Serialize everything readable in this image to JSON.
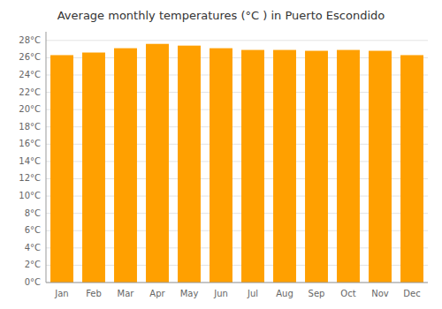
{
  "chart_data": {
    "type": "bar",
    "title": "Average monthly temperatures (°C ) in Puerto Escondido",
    "categories": [
      "Jan",
      "Feb",
      "Mar",
      "Apr",
      "May",
      "Jun",
      "Jul",
      "Aug",
      "Sep",
      "Oct",
      "Nov",
      "Dec"
    ],
    "values": [
      26.3,
      26.6,
      27.1,
      27.6,
      27.4,
      27.1,
      26.9,
      26.9,
      26.8,
      26.9,
      26.8,
      26.3
    ],
    "color": "#FFA000",
    "ylim": [
      0,
      29
    ],
    "yticks": [
      {
        "value": 0,
        "label": "0°C"
      },
      {
        "value": 2,
        "label": "2°C"
      },
      {
        "value": 4,
        "label": "4°C"
      },
      {
        "value": 6,
        "label": "6°C"
      },
      {
        "value": 8,
        "label": "8°C"
      },
      {
        "value": 10,
        "label": "10°C"
      },
      {
        "value": 12,
        "label": "12°C"
      },
      {
        "value": 14,
        "label": "14°C"
      },
      {
        "value": 16,
        "label": "16°C"
      },
      {
        "value": 18,
        "label": "18°C"
      },
      {
        "value": 20,
        "label": "20°C"
      },
      {
        "value": 22,
        "label": "22°C"
      },
      {
        "value": 24,
        "label": "24°C"
      },
      {
        "value": 26,
        "label": "26°C"
      },
      {
        "value": 28,
        "label": "28°C"
      }
    ],
    "grid": true
  }
}
